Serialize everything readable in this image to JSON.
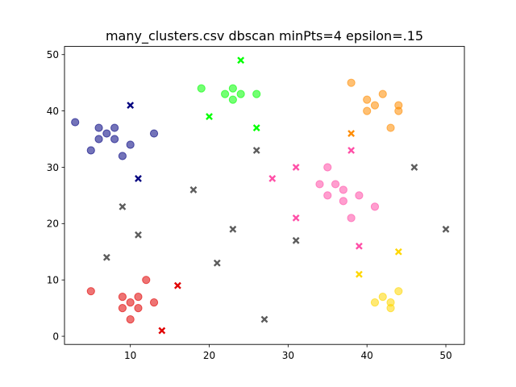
{
  "chart_data": {
    "type": "scatter",
    "title": "many_clusters.csv dbscan minPts=4 epsilon=.15",
    "xlabel": "",
    "ylabel": "",
    "xlim": [
      1.65,
      52.35
    ],
    "ylim": [
      -1.45,
      51.45
    ],
    "xticks": [
      10,
      20,
      30,
      40,
      50
    ],
    "yticks": [
      0,
      10,
      20,
      30,
      40,
      50
    ],
    "grid": false,
    "legend": false,
    "clusters": [
      {
        "color": "#00007f",
        "core": [
          [
            3,
            38
          ],
          [
            5,
            33
          ],
          [
            6,
            35
          ],
          [
            6,
            37
          ],
          [
            7,
            36
          ],
          [
            8,
            37
          ],
          [
            8,
            35
          ],
          [
            9,
            32
          ],
          [
            10,
            34
          ],
          [
            13,
            36
          ]
        ],
        "border": [
          [
            10,
            41
          ],
          [
            11,
            28
          ]
        ]
      },
      {
        "color": "#00ff00",
        "core": [
          [
            19,
            44
          ],
          [
            22,
            43
          ],
          [
            23,
            44
          ],
          [
            23,
            42
          ],
          [
            24,
            43
          ],
          [
            26,
            43
          ]
        ],
        "border": [
          [
            24,
            49
          ],
          [
            20,
            39
          ],
          [
            26,
            37
          ]
        ]
      },
      {
        "color": "#ff8c00",
        "core": [
          [
            38,
            45
          ],
          [
            40,
            42
          ],
          [
            40,
            40
          ],
          [
            41,
            41
          ],
          [
            42,
            43
          ],
          [
            43,
            37
          ],
          [
            44,
            41
          ],
          [
            44,
            40
          ]
        ],
        "border": [
          [
            38,
            36
          ]
        ]
      },
      {
        "color": "#ff4fa7",
        "core": [
          [
            34,
            27
          ],
          [
            35,
            30
          ],
          [
            35,
            25
          ],
          [
            36,
            27
          ],
          [
            37,
            26
          ],
          [
            37,
            24
          ],
          [
            38,
            21
          ],
          [
            39,
            25
          ],
          [
            41,
            23
          ]
        ],
        "border": [
          [
            31,
            30
          ],
          [
            28,
            28
          ],
          [
            38,
            33
          ],
          [
            31,
            21
          ],
          [
            39,
            16
          ]
        ]
      },
      {
        "color": "#e00000",
        "core": [
          [
            5,
            8
          ],
          [
            9,
            7
          ],
          [
            9,
            5
          ],
          [
            10,
            6
          ],
          [
            10,
            3
          ],
          [
            11,
            7
          ],
          [
            11,
            5
          ],
          [
            12,
            10
          ],
          [
            13,
            6
          ]
        ],
        "border": [
          [
            16,
            9
          ],
          [
            14,
            1
          ]
        ]
      },
      {
        "color": "#ffd700",
        "core": [
          [
            41,
            6
          ],
          [
            42,
            7
          ],
          [
            43,
            6
          ],
          [
            43,
            5
          ],
          [
            44,
            8
          ]
        ],
        "border": [
          [
            39,
            11
          ],
          [
            44,
            15
          ]
        ]
      }
    ],
    "noise": {
      "color": "#333333",
      "points": [
        [
          9,
          23
        ],
        [
          11,
          18
        ],
        [
          7,
          14
        ],
        [
          18,
          26
        ],
        [
          21,
          13
        ],
        [
          23,
          19
        ],
        [
          26,
          33
        ],
        [
          27,
          3
        ],
        [
          31,
          17
        ],
        [
          46,
          30
        ],
        [
          50,
          19
        ]
      ]
    }
  }
}
